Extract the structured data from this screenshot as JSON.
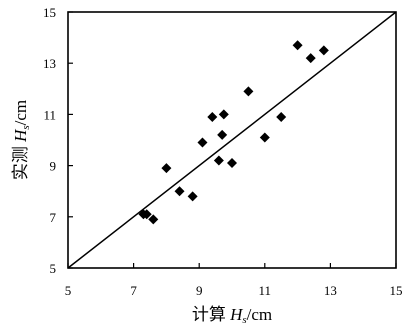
{
  "chart_data": {
    "type": "scatter",
    "title": "",
    "xlabel": {
      "prefix": "计算 ",
      "symbol": "H",
      "subscript": "s",
      "suffix": "/cm"
    },
    "ylabel": {
      "prefix": "实测 ",
      "symbol": "H",
      "subscript": "s",
      "suffix": "/cm"
    },
    "xlim": [
      5,
      15
    ],
    "ylim": [
      5,
      15
    ],
    "xticks": [
      5,
      7,
      9,
      11,
      13,
      15
    ],
    "yticks": [
      5,
      7,
      9,
      11,
      13,
      15
    ],
    "grid": false,
    "reference_line": {
      "x": [
        5,
        15
      ],
      "y": [
        5,
        15
      ]
    },
    "marker": "diamond",
    "color": "#000000",
    "points": [
      {
        "x": 7.3,
        "y": 7.1
      },
      {
        "x": 7.4,
        "y": 7.1
      },
      {
        "x": 7.6,
        "y": 6.9
      },
      {
        "x": 8.0,
        "y": 8.9
      },
      {
        "x": 8.4,
        "y": 8.0
      },
      {
        "x": 8.8,
        "y": 7.8
      },
      {
        "x": 9.1,
        "y": 9.9
      },
      {
        "x": 9.4,
        "y": 10.9
      },
      {
        "x": 9.6,
        "y": 9.2
      },
      {
        "x": 9.7,
        "y": 10.2
      },
      {
        "x": 9.75,
        "y": 11.0
      },
      {
        "x": 10.0,
        "y": 9.1
      },
      {
        "x": 10.5,
        "y": 11.9
      },
      {
        "x": 11.0,
        "y": 10.1
      },
      {
        "x": 11.5,
        "y": 10.9
      },
      {
        "x": 12.0,
        "y": 13.7
      },
      {
        "x": 12.4,
        "y": 13.2
      },
      {
        "x": 12.8,
        "y": 13.5
      }
    ]
  }
}
